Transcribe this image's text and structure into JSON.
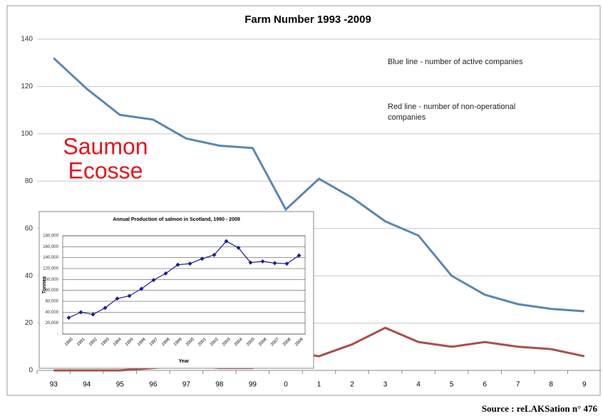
{
  "chart_data": [
    {
      "type": "line",
      "title": "Farm Number 1993 -2009",
      "categories": [
        "93",
        "94",
        "95",
        "96",
        "97",
        "98",
        "99",
        "0",
        "1",
        "2",
        "3",
        "4",
        "5",
        "6",
        "7",
        "8",
        "9"
      ],
      "series": [
        {
          "name": "Blue line - number of active companies",
          "color": "#5b87b3",
          "values": [
            132,
            119,
            108,
            106,
            98,
            95,
            94,
            68,
            81,
            73,
            63,
            57,
            40,
            32,
            28,
            26,
            25
          ]
        },
        {
          "name": "Red line - number of non-operational companies",
          "color": "#a94f4c",
          "values": [
            0,
            0,
            0,
            1,
            2,
            1,
            1,
            8,
            6,
            11,
            18,
            12,
            10,
            12,
            10,
            9,
            6
          ]
        }
      ],
      "ylim": [
        0,
        140
      ],
      "yticks": [
        0,
        20,
        40,
        60,
        80,
        100,
        120,
        140
      ],
      "grid": true,
      "overlay_text": [
        "Saumon",
        "Ecosse"
      ],
      "overlay_color": "#e8141b",
      "source": "Source : reLAKSation n° 476"
    },
    {
      "type": "line",
      "title": "Annual Production of salmon in Scotland, 1990 - 2009",
      "x_label": "Year",
      "y_label": "Tonnes",
      "categories": [
        "1990",
        "1991",
        "1992",
        "1993",
        "1994",
        "1995",
        "1996",
        "1997",
        "1998",
        "1999",
        "2000",
        "2001",
        "2002",
        "2003",
        "2004",
        "2005",
        "2006",
        "2007",
        "2008",
        "2009"
      ],
      "series": [
        {
          "color": "#1f1f8f",
          "values": [
            30000,
            40000,
            36000,
            48000,
            65000,
            70000,
            83000,
            99000,
            111000,
            127000,
            129000,
            138000,
            145000,
            170000,
            158000,
            131000,
            133000,
            130000,
            129000,
            144000
          ]
        }
      ],
      "ylim": [
        0,
        180000
      ],
      "yticks": [
        {
          "value": 0,
          "label": "-"
        },
        {
          "value": 20000,
          "label": "20,000"
        },
        {
          "value": 40000,
          "label": "40,000"
        },
        {
          "value": 60000,
          "label": "60,000"
        },
        {
          "value": 80000,
          "label": "80,000"
        },
        {
          "value": 100000,
          "label": "100,000"
        },
        {
          "value": 120000,
          "label": "120,000"
        },
        {
          "value": 140000,
          "label": "140,000"
        },
        {
          "value": 160000,
          "label": "160,000"
        },
        {
          "value": 180000,
          "label": "180,000"
        }
      ],
      "grid": true,
      "markers": true
    }
  ]
}
